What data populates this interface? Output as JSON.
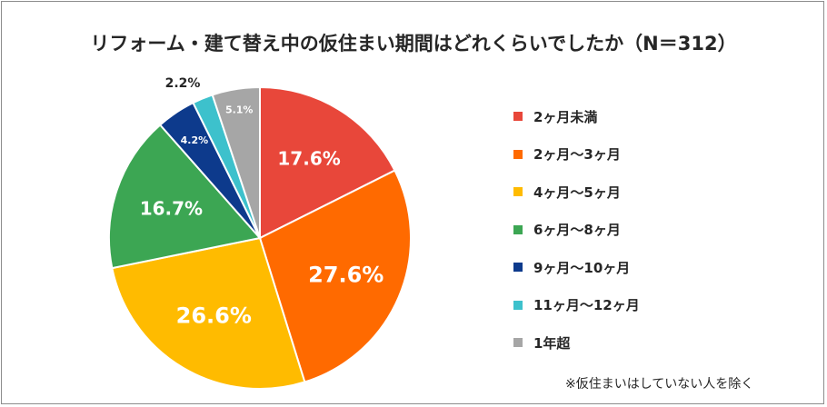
{
  "title": "リフォーム・建て替え中の仮住まい期間はどれくらいでしたか（N＝312）",
  "note": "※仮住まいはしていない人を除く",
  "chart_data": {
    "type": "pie",
    "title": "リフォーム・建て替え中の仮住まい期間はどれくらいでしたか（N＝312）",
    "categories": [
      "2ヶ月未満",
      "2ヶ月～3ヶ月",
      "4ヶ月～5ヶ月",
      "6ヶ月～8ヶ月",
      "9ヶ月～10ヶ月",
      "11ヶ月～12ヶ月",
      "1年超"
    ],
    "values": [
      17.6,
      27.6,
      26.6,
      16.7,
      4.2,
      2.2,
      5.1
    ],
    "labels": [
      "17.6%",
      "27.6%",
      "26.6%",
      "16.7%",
      "4.2%",
      "2.2%",
      "5.1%"
    ],
    "colors": [
      "#E8473A",
      "#FF6A00",
      "#FFBB00",
      "#3CA653",
      "#0D3A8C",
      "#3DC1CC",
      "#A6A6A6"
    ],
    "legend": "right"
  }
}
